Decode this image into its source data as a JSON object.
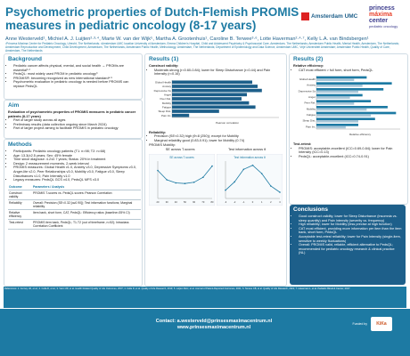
{
  "header": {
    "title": "Psychometric properties of Dutch-Flemish PROMIS measures in pediatric oncology (8-17 years)",
    "authors": "Anne Westerveld¹, Michiel A. J. Luijten²·³·⁴, Marte W. van der Wijk⁵, Martha A. Grootenhuis¹, Caroline B. Terwee³·⁶, Lotte Haverman²·⁴·⁷, Kelly L.A. van Bindsbergen¹",
    "affiliations": "¹Princess Máxima Center for Pediatric Oncology, Utrecht, The Netherlands; ²Amsterdam UMC location University of Amsterdam, Emma Children's Hospital, Child and Adolescent Psychiatry & Psychosocial Care, Amsterdam, The Netherlands; Amsterdam Public Health, Mental Health, Amsterdam, The Netherlands; Amsterdam Reproduction and Development, Child Development, Amsterdam, The Netherlands; Amsterdam Public Health, Methodology, Amsterdam, The Netherlands; Department of Epidemiology and Data Science, Amsterdam UMC, Vrije Universiteit Amsterdam; Amsterdam Public Health, Quality of Care, Amsterdam, The Netherlands",
    "logo_a": "Amsterdam UMC",
    "logo_b_line1": "princess",
    "logo_b_line2": "máxima",
    "logo_b_line3": "center",
    "logo_b_sub": "pediatric oncology"
  },
  "background": {
    "heading": "Background",
    "items": [
      "Pediatric cancer affects physical, mental, and social health → PROMs are essential¹·²",
      "PedsQL: most widely used PROM in pediatric oncology³",
      "PROMIS®: becoming recognized as new international standard⁴·⁵",
      "Psychometric evaluation in pediatric oncology is needed before PROMIS can replace PedsQL"
    ]
  },
  "aim": {
    "heading": "Aim",
    "text": "Evaluation of psychometric properties of PROMIS measures in pediatric cancer patients (8-17 years)",
    "items": [
      "Part of larger study across all ages",
      "Preliminary results (data collection ongoing since March 2024)",
      "Part of larger project aiming to facilitate PROMIS in pediatric oncology"
    ]
  },
  "methods": {
    "heading": "Methods",
    "items": [
      "Participants: Pediatric oncology patients (T1: n=98; T2: n=68)",
      "Age: 13.3(±2.5 years; Sex: 45% female",
      "Time since diagnose: 4.2±2.7 years; Status: 20% in treatment",
      "Design: 2 measurement moments, 2-week interval",
      "PROMIS measures: Global Health v1.0, Anxiety v3.0, Depressive Symptoms v3.0, Anger-lite v2.0, Peer Relationships v3.0, Mobility v3.0, Fatigue v3.0, Sleep Disturbances v1.0, Pain Intensity v1.0",
      "Legacy measures: PedsQL GCS v4.0, PedsQL MFS v3.0"
    ],
    "table": {
      "headers": [
        "Outcome",
        "Parameters / Analysis"
      ],
      "rows": [
        [
          "Construct validity",
          "PROMIS T-scores vs. PedsQL scores: Pearson Correlation"
        ],
        [
          "Reliability",
          "Overall: Precision (SE<0.32 [α≥0.90]); Test information functions; Marginal reliability"
        ],
        [
          "Relative efficiency",
          "Item bank, short form, CAT, PedsQL: Efficiency ratios (baseline=35% CI)"
        ],
        [
          "Test-retest",
          "PROMIS item bank, PedsQL; T1-T2 (out of timeframe, n=52); Intraclass Correlation Coefficient"
        ]
      ]
    }
  },
  "results1": {
    "heading": "Results (1)",
    "sub": "Construct validity:",
    "items": [
      "Moderate-strong (r=0.60-0.84); lower for Sleep Disturbance (r=0.44) and Pain Intensity (r=0.16)"
    ],
    "rel_heading": "Reliability:",
    "rel_items": [
      "Precision (SE<0.32) high (θ<8 (250)); except for Mobility",
      "Marginal reliability good (0.83-0.91); lower for Mobility (0.74)"
    ],
    "mob_label": "PROMIS Mobility:",
    "mob_left": "SE across T-scores",
    "mob_right": "Test information across θ"
  },
  "results2": {
    "heading": "Results (2)",
    "sub": "Relative efficiency:",
    "items": [
      "CAT most efficient > full form, short form, PedsQL"
    ],
    "tr_heading": "Test-retest:",
    "tr_items": [
      "PROMIS: acceptable-excellent (ICC=0.69-0.84); lower for Pain Intensity (ICC=0.13)",
      "PedsQL: acceptable-excellent (ICC=0.74-0.91)"
    ]
  },
  "conclusions": {
    "heading": "Conclusions",
    "items": [
      "Good construct validity; lower for Sleep Disturbance (insomnia vs. sleep quantity) and Pain Intensity (severity vs. frequency)",
      "High reliability; lower for Mobility (less precise at high function)",
      "CAT most efficient, providing more information per item than the item bank, short form, PedsQL",
      "Acceptable test-retest reliability; lower for Pain Intensity (single-item, sensitive to weekly fluctuations)",
      "Overall: PROMIS valid, reliable, efficient alternative to PedsQL; recommended for pediatric oncology research & clinical practice (NL)"
    ]
  },
  "references": {
    "text": "References: 1. Gurney LR, et al.; 2. Cella D, et al.; 3. Varni JW, et al. Health Related Quality of Life Outcomes, 2007; 4. Cella D, et al. Quality of Life Research, 2019; 5. Luijten MAJ, et al. Journal of Patient-Reported Outcomes, 2021; 6. Terwee CB, et al. Quality of Life Research, 2021; 7. Haverman L, et al. Pediatric Blood & Cancer, 2017."
  },
  "footer": {
    "contact": "Contact: a.westerveld@prinsesmaximacentrum.nl",
    "site": "www.prinsesmaximacentrum.nl",
    "funded": "Funded by",
    "funder": "KiKa"
  },
  "chart_data": [
    {
      "type": "bar",
      "title": "",
      "xlabel": "Pearson correlation",
      "ylabel": "",
      "categories": [
        "Global Health",
        "Anxiety",
        "Depressive Sx",
        "Anger",
        "Peer Rel.",
        "Mobility",
        "Fatigue",
        "Sleep Dist.",
        "Pain Int."
      ],
      "series": [
        {
          "values": [
            0.75,
            0.8,
            0.84,
            0.7,
            0.65,
            0.72,
            0.78,
            0.44,
            0.16
          ]
        }
      ],
      "xlim": [
        0,
        1
      ]
    },
    {
      "type": "line",
      "title": "SE across T-scores",
      "xlabel": "T-score",
      "ylabel": "SE",
      "x": [
        20,
        30,
        40,
        50,
        60,
        70,
        80
      ],
      "series": [
        {
          "values": [
            0.45,
            0.3,
            0.25,
            0.24,
            0.26,
            0.34,
            0.52
          ]
        }
      ],
      "ylim": [
        0,
        0.6
      ]
    },
    {
      "type": "line",
      "title": "Test information across θ",
      "xlabel": "θ",
      "ylabel": "Information",
      "x": [
        -3,
        -2,
        -1,
        0,
        1,
        2,
        3
      ],
      "series": [
        {
          "values": [
            4,
            8,
            14,
            16,
            12,
            6,
            3
          ]
        }
      ],
      "ylim": [
        0,
        18
      ]
    },
    {
      "type": "bar",
      "title": "",
      "xlabel": "Relative efficiency",
      "ylabel": "",
      "categories": [
        "Global Health",
        "Anxiety",
        "Depressive Sx",
        "Anger",
        "Peer Rel.",
        "Mobility",
        "Fatigue",
        "Sleep Dist.",
        "Pain Int."
      ],
      "series": [
        {
          "values": [
            1.2,
            1.8,
            1.6,
            1.1,
            1.3,
            1.7,
            1.9,
            1.4,
            1.0
          ]
        },
        {
          "values": [
            0.9,
            1.1,
            1.0,
            0.8,
            0.9,
            1.2,
            1.3,
            1.0,
            0.7
          ]
        }
      ],
      "xlim": [
        0,
        2
      ]
    }
  ]
}
